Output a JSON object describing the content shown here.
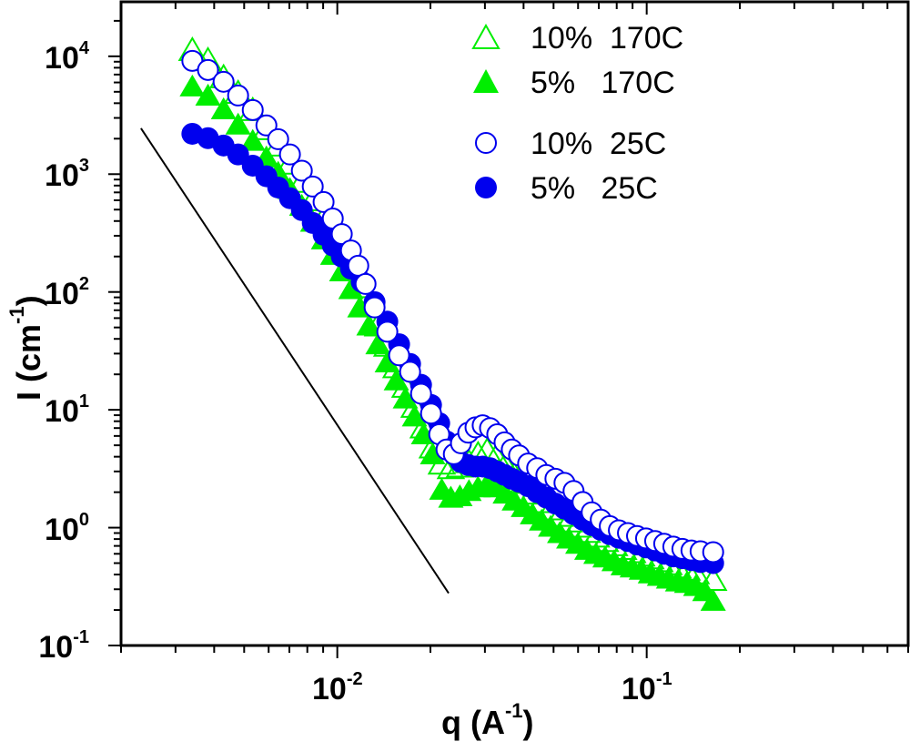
{
  "chart_data": {
    "type": "scatter",
    "title": "",
    "xlabel": "q (A-1)",
    "xlabel_parts": {
      "base": "q (A",
      "sup": "-1",
      "close": ")"
    },
    "ylabel": "I (cm-1)",
    "ylabel_parts": {
      "base": "I (cm",
      "sup": "-1",
      "close": ")"
    },
    "xscale": "log",
    "yscale": "log",
    "xlim": [
      0.002,
      0.7
    ],
    "ylim": [
      0.1,
      29000
    ],
    "grid": false,
    "legend_position": "top-right",
    "x_ticks": [
      {
        "value": 0.01,
        "base": "10",
        "exp": "-2"
      },
      {
        "value": 0.1,
        "base": "10",
        "exp": "-1"
      }
    ],
    "y_ticks": [
      {
        "value": 0.1,
        "base": "10",
        "exp": "-1"
      },
      {
        "value": 1,
        "base": "10",
        "exp": "0"
      },
      {
        "value": 10,
        "base": "10",
        "exp": "1"
      },
      {
        "value": 100,
        "base": "10",
        "exp": "2"
      },
      {
        "value": 1000,
        "base": "10",
        "exp": "3"
      },
      {
        "value": 10000,
        "base": "10",
        "exp": "4"
      }
    ],
    "reference_line": {
      "slope": -4,
      "from": [
        0.00232,
        2450
      ],
      "to": [
        0.0229,
        0.278
      ],
      "color": "#000000"
    },
    "series": [
      {
        "name": "10%  170C",
        "marker": "triangle-open",
        "color": "#00ee00",
        "points": [
          [
            0.0034,
            11300
          ],
          [
            0.00382,
            9300
          ],
          [
            0.00429,
            6650
          ],
          [
            0.00478,
            4900
          ],
          [
            0.00533,
            3500
          ],
          [
            0.0059,
            2410
          ],
          [
            0.00644,
            1750
          ],
          [
            0.00703,
            1230
          ],
          [
            0.00768,
            860
          ],
          [
            0.00833,
            600
          ],
          [
            0.00903,
            420
          ],
          [
            0.00967,
            306
          ],
          [
            0.01034,
            222
          ],
          [
            0.01107,
            158
          ],
          [
            0.01183,
            110
          ],
          [
            0.01266,
            76
          ],
          [
            0.01354,
            52
          ],
          [
            0.01451,
            35
          ],
          [
            0.01552,
            23
          ],
          [
            0.0166,
            15.7
          ],
          [
            0.01777,
            10.6
          ],
          [
            0.01901,
            7.1
          ],
          [
            0.02034,
            4.8
          ],
          [
            0.02176,
            3.5
          ],
          [
            0.02328,
            3.2
          ],
          [
            0.0249,
            3.3
          ],
          [
            0.02664,
            3.6
          ],
          [
            0.02851,
            4.2
          ],
          [
            0.0305,
            4.5
          ],
          [
            0.03262,
            4.0
          ],
          [
            0.0349,
            3.4
          ],
          [
            0.03734,
            2.8
          ],
          [
            0.03995,
            2.4
          ],
          [
            0.04274,
            1.95
          ],
          [
            0.04573,
            1.65
          ],
          [
            0.04892,
            1.43
          ],
          [
            0.05234,
            1.26
          ],
          [
            0.056,
            1.13
          ],
          [
            0.05991,
            1.02
          ],
          [
            0.06409,
            0.92
          ],
          [
            0.06857,
            0.84
          ],
          [
            0.07336,
            0.77
          ],
          [
            0.07849,
            0.71
          ],
          [
            0.08397,
            0.66
          ],
          [
            0.08983,
            0.62
          ],
          [
            0.09611,
            0.58
          ],
          [
            0.10282,
            0.55
          ],
          [
            0.11,
            0.52
          ],
          [
            0.11769,
            0.49
          ],
          [
            0.12591,
            0.46
          ],
          [
            0.13471,
            0.44
          ],
          [
            0.14412,
            0.41
          ],
          [
            0.164,
            0.36
          ]
        ]
      },
      {
        "name": "5%   170C",
        "marker": "triangle-filled",
        "color": "#00ee00",
        "points": [
          [
            0.0034,
            5560
          ],
          [
            0.00382,
            4650
          ],
          [
            0.00429,
            3560
          ],
          [
            0.00478,
            2640
          ],
          [
            0.00533,
            1920
          ],
          [
            0.0059,
            1390
          ],
          [
            0.00644,
            1030
          ],
          [
            0.00703,
            750
          ],
          [
            0.00768,
            540
          ],
          [
            0.00833,
            395
          ],
          [
            0.00903,
            280
          ],
          [
            0.00967,
            207
          ],
          [
            0.01034,
            150
          ],
          [
            0.01107,
            106
          ],
          [
            0.01183,
            74
          ],
          [
            0.01266,
            52
          ],
          [
            0.01354,
            36
          ],
          [
            0.01451,
            25.3
          ],
          [
            0.01552,
            17.8
          ],
          [
            0.0166,
            12.5
          ],
          [
            0.01777,
            8.8
          ],
          [
            0.01901,
            6.2
          ],
          [
            0.02034,
            4.2
          ],
          [
            0.02176,
            2.1
          ],
          [
            0.02328,
            1.8
          ],
          [
            0.0249,
            1.85
          ],
          [
            0.02664,
            2.05
          ],
          [
            0.02851,
            2.2
          ],
          [
            0.0305,
            2.35
          ],
          [
            0.03262,
            2.2
          ],
          [
            0.0349,
            1.95
          ],
          [
            0.03734,
            1.7
          ],
          [
            0.03995,
            1.5
          ],
          [
            0.04274,
            1.3
          ],
          [
            0.04573,
            1.15
          ],
          [
            0.04892,
            1.02
          ],
          [
            0.05234,
            0.9
          ],
          [
            0.056,
            0.81
          ],
          [
            0.05991,
            0.73
          ],
          [
            0.06409,
            0.65
          ],
          [
            0.06857,
            0.6
          ],
          [
            0.07336,
            0.56
          ],
          [
            0.07849,
            0.52
          ],
          [
            0.08397,
            0.48
          ],
          [
            0.08983,
            0.46
          ],
          [
            0.09611,
            0.44
          ],
          [
            0.10282,
            0.41
          ],
          [
            0.11,
            0.39
          ],
          [
            0.11769,
            0.37
          ],
          [
            0.12591,
            0.35
          ],
          [
            0.13471,
            0.34
          ],
          [
            0.14412,
            0.32
          ],
          [
            0.15419,
            0.29
          ],
          [
            0.164,
            0.24
          ]
        ]
      },
      {
        "name": "10%  25C",
        "marker": "circle-open",
        "color": "#0000ee",
        "points": [
          [
            0.0034,
            9150
          ],
          [
            0.00382,
            7660
          ],
          [
            0.00429,
            6080
          ],
          [
            0.00478,
            4650
          ],
          [
            0.00533,
            3500
          ],
          [
            0.0059,
            2590
          ],
          [
            0.00644,
            1980
          ],
          [
            0.00703,
            1470
          ],
          [
            0.00768,
            1070
          ],
          [
            0.00833,
            785
          ],
          [
            0.00903,
            580
          ],
          [
            0.00967,
            420
          ],
          [
            0.01034,
            310
          ],
          [
            0.01107,
            225
          ],
          [
            0.01169,
            167
          ],
          [
            0.01234,
            117
          ],
          [
            0.0132,
            74
          ],
          [
            0.01451,
            46
          ],
          [
            0.01584,
            29
          ],
          [
            0.01719,
            21
          ],
          [
            0.01865,
            13.7
          ],
          [
            0.02009,
            9.3
          ],
          [
            0.02135,
            6.2
          ],
          [
            0.02254,
            4.6
          ],
          [
            0.0238,
            4.2
          ],
          [
            0.0251,
            5.2
          ],
          [
            0.0265,
            6.4
          ],
          [
            0.02797,
            7.1
          ],
          [
            0.0295,
            7.4
          ],
          [
            0.03116,
            7.0
          ],
          [
            0.03288,
            6.2
          ],
          [
            0.03472,
            5.3
          ],
          [
            0.03664,
            4.6
          ],
          [
            0.03868,
            4.1
          ],
          [
            0.04137,
            3.5
          ],
          [
            0.04425,
            3.2
          ],
          [
            0.04738,
            2.8
          ],
          [
            0.0507,
            2.6
          ],
          [
            0.05423,
            2.4
          ],
          [
            0.05802,
            2.05
          ],
          [
            0.06207,
            1.65
          ],
          [
            0.0664,
            1.35
          ],
          [
            0.07103,
            1.17
          ],
          [
            0.07597,
            1.03
          ],
          [
            0.08129,
            0.95
          ],
          [
            0.08697,
            0.9
          ],
          [
            0.09304,
            0.85
          ],
          [
            0.09952,
            0.81
          ],
          [
            0.1065,
            0.77
          ],
          [
            0.1139,
            0.73
          ],
          [
            0.1219,
            0.69
          ],
          [
            0.1304,
            0.66
          ],
          [
            0.1395,
            0.64
          ],
          [
            0.1493,
            0.63
          ],
          [
            0.164,
            0.62
          ]
        ]
      },
      {
        "name": "5%   25C",
        "marker": "circle-filled",
        "color": "#0000ee",
        "points": [
          [
            0.0034,
            2200
          ],
          [
            0.00382,
            2020
          ],
          [
            0.00429,
            1750
          ],
          [
            0.00478,
            1470
          ],
          [
            0.00533,
            1180
          ],
          [
            0.0059,
            960
          ],
          [
            0.00644,
            770
          ],
          [
            0.00703,
            625
          ],
          [
            0.00768,
            495
          ],
          [
            0.00833,
            385
          ],
          [
            0.00903,
            306
          ],
          [
            0.00967,
            248
          ],
          [
            0.01034,
            200
          ],
          [
            0.01107,
            158
          ],
          [
            0.01199,
            122
          ],
          [
            0.0132,
            82
          ],
          [
            0.01451,
            56
          ],
          [
            0.01584,
            36
          ],
          [
            0.01719,
            24.5
          ],
          [
            0.01865,
            16.3
          ],
          [
            0.02009,
            11.0
          ],
          [
            0.02135,
            7.7
          ],
          [
            0.02254,
            5.4
          ],
          [
            0.0238,
            4.2
          ],
          [
            0.0251,
            3.6
          ],
          [
            0.0265,
            3.4
          ],
          [
            0.02797,
            3.3
          ],
          [
            0.0295,
            3.3
          ],
          [
            0.03116,
            3.2
          ],
          [
            0.03288,
            3.0
          ],
          [
            0.03472,
            2.8
          ],
          [
            0.03664,
            2.6
          ],
          [
            0.03868,
            2.45
          ],
          [
            0.04137,
            2.25
          ],
          [
            0.04425,
            2.0
          ],
          [
            0.04738,
            1.8
          ],
          [
            0.0507,
            1.6
          ],
          [
            0.05423,
            1.45
          ],
          [
            0.05802,
            1.3
          ],
          [
            0.06207,
            1.17
          ],
          [
            0.0664,
            1.05
          ],
          [
            0.07103,
            0.96
          ],
          [
            0.07597,
            0.88
          ],
          [
            0.08129,
            0.82
          ],
          [
            0.08697,
            0.77
          ],
          [
            0.09304,
            0.72
          ],
          [
            0.09952,
            0.68
          ],
          [
            0.1065,
            0.64
          ],
          [
            0.1139,
            0.6
          ],
          [
            0.1219,
            0.57
          ],
          [
            0.1304,
            0.55
          ],
          [
            0.1395,
            0.53
          ],
          [
            0.1493,
            0.51
          ],
          [
            0.164,
            0.5
          ]
        ]
      }
    ]
  }
}
